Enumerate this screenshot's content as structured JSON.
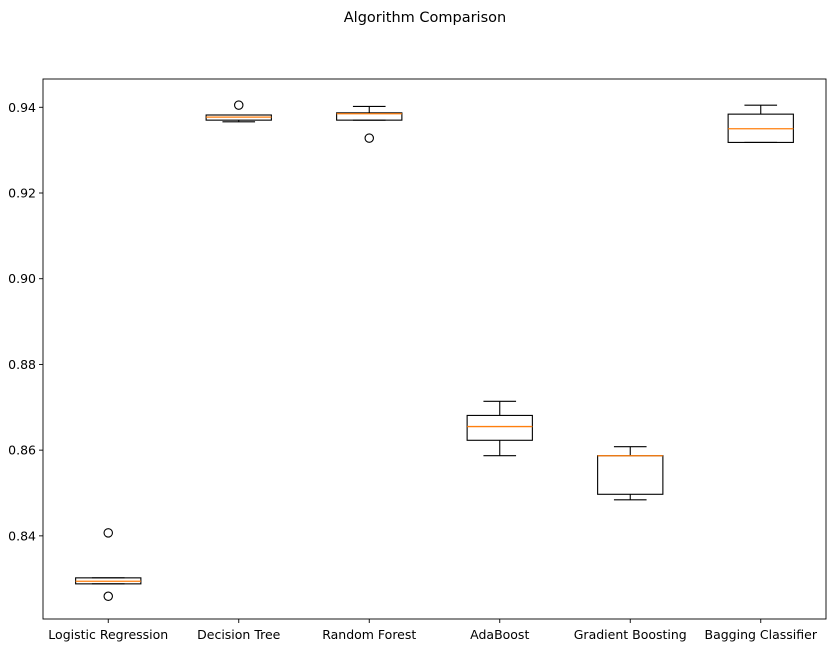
{
  "chart_data": {
    "type": "boxplot",
    "title": "Algorithm Comparison",
    "xlabel": "",
    "ylabel": "",
    "ylim": [
      0.8206,
      0.9466
    ],
    "yticks": [
      0.84,
      0.86,
      0.88,
      0.9,
      0.92,
      0.94
    ],
    "ytick_labels": [
      "0.84",
      "0.86",
      "0.88",
      "0.90",
      "0.92",
      "0.94"
    ],
    "grid": false,
    "colors": {
      "box": "#000000",
      "median": "#ff7f0e",
      "flier": "#000000",
      "background": "#ffffff"
    },
    "categories": [
      "Logistic Regression",
      "Decision Tree",
      "Random Forest",
      "AdaBoost",
      "Gradient Boosting",
      "Bagging Classifier"
    ],
    "boxes": [
      {
        "whisker_low": 0.8288,
        "q1": 0.8288,
        "median": 0.8294,
        "q3": 0.8302,
        "whisker_high": 0.8302,
        "fliers": [
          0.8407,
          0.8259
        ]
      },
      {
        "whisker_low": 0.9366,
        "q1": 0.937,
        "median": 0.9377,
        "q3": 0.9382,
        "whisker_high": 0.9382,
        "fliers": [
          0.9405
        ]
      },
      {
        "whisker_low": 0.937,
        "q1": 0.937,
        "median": 0.9385,
        "q3": 0.9387,
        "whisker_high": 0.9402,
        "fliers": [
          0.9328
        ]
      },
      {
        "whisker_low": 0.8587,
        "q1": 0.8623,
        "median": 0.8655,
        "q3": 0.8681,
        "whisker_high": 0.8714,
        "fliers": []
      },
      {
        "whisker_low": 0.8484,
        "q1": 0.8497,
        "median": 0.8587,
        "q3": 0.8587,
        "whisker_high": 0.8608,
        "fliers": []
      },
      {
        "whisker_low": 0.9318,
        "q1": 0.9318,
        "median": 0.935,
        "q3": 0.9384,
        "whisker_high": 0.9405,
        "fliers": []
      }
    ]
  }
}
